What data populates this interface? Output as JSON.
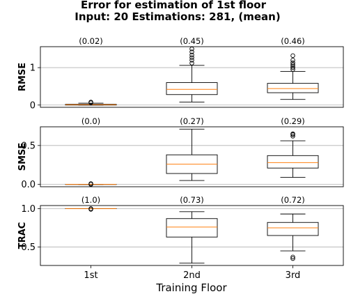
{
  "figure": {
    "title_line1": "Error for estimation of 1st floor",
    "title_line2": "Input: 20   Estimations: 281,  (mean)",
    "xlabel": "Training Floor"
  },
  "colors": {
    "box_edge": "#000000",
    "median": "#ff7f0e",
    "grid": "#b0b0b0",
    "frame": "#000000"
  },
  "chart_data": [
    {
      "type": "box",
      "ylabel": "RMSE",
      "categories": [
        "1st",
        "2nd",
        "3rd"
      ],
      "ylim": [
        -0.06,
        1.56
      ],
      "yticks": [
        0,
        1
      ],
      "grid": "horizontal",
      "annotations": [
        "(0.02)",
        "(0.45)",
        "(0.46)"
      ],
      "boxes": [
        {
          "whislo": 0.0,
          "q1": 0.0,
          "med": 0.01,
          "q3": 0.02,
          "whishi": 0.05,
          "fliers": [
            0.06,
            0.08
          ]
        },
        {
          "whislo": 0.08,
          "q1": 0.28,
          "med": 0.42,
          "q3": 0.6,
          "whishi": 1.06,
          "fliers": [
            1.12,
            1.2,
            1.27,
            1.34,
            1.42,
            1.5
          ]
        },
        {
          "whislo": 0.15,
          "q1": 0.33,
          "med": 0.44,
          "q3": 0.58,
          "whishi": 0.9,
          "fliers": [
            0.95,
            1.0,
            1.04,
            1.08,
            1.13,
            1.2,
            1.32
          ]
        }
      ]
    },
    {
      "type": "box",
      "ylabel": "SMSE",
      "categories": [
        "1st",
        "2nd",
        "3rd"
      ],
      "ylim": [
        -0.03,
        0.74
      ],
      "yticks": [
        0.0,
        0.5
      ],
      "grid": "horizontal",
      "annotations": [
        "(0.0)",
        "(0.27)",
        "(0.29)"
      ],
      "boxes": [
        {
          "whislo": 0.0,
          "q1": 0.0,
          "med": 0.0,
          "q3": 0.0,
          "whishi": 0.0,
          "fliers": [
            0.0,
            0.01
          ]
        },
        {
          "whislo": 0.05,
          "q1": 0.14,
          "med": 0.26,
          "q3": 0.38,
          "whishi": 0.71,
          "fliers": []
        },
        {
          "whislo": 0.09,
          "q1": 0.21,
          "med": 0.28,
          "q3": 0.37,
          "whishi": 0.56,
          "fliers": [
            0.62,
            0.64,
            0.65
          ]
        }
      ]
    },
    {
      "type": "box",
      "ylabel": "TRAC",
      "categories": [
        "1st",
        "2nd",
        "3rd"
      ],
      "ylim": [
        0.26,
        1.04
      ],
      "yticks": [
        0.5,
        1.0
      ],
      "grid": "horizontal",
      "annotations": [
        "(1.0)",
        "(0.73)",
        "(0.72)"
      ],
      "boxes": [
        {
          "whislo": 1.0,
          "q1": 1.0,
          "med": 1.0,
          "q3": 1.0,
          "whishi": 1.0,
          "fliers": [
            0.99,
            1.0
          ]
        },
        {
          "whislo": 0.29,
          "q1": 0.63,
          "med": 0.76,
          "q3": 0.87,
          "whishi": 0.96,
          "fliers": []
        },
        {
          "whislo": 0.45,
          "q1": 0.65,
          "med": 0.75,
          "q3": 0.82,
          "whishi": 0.93,
          "fliers": [
            0.35,
            0.37
          ]
        }
      ]
    }
  ]
}
